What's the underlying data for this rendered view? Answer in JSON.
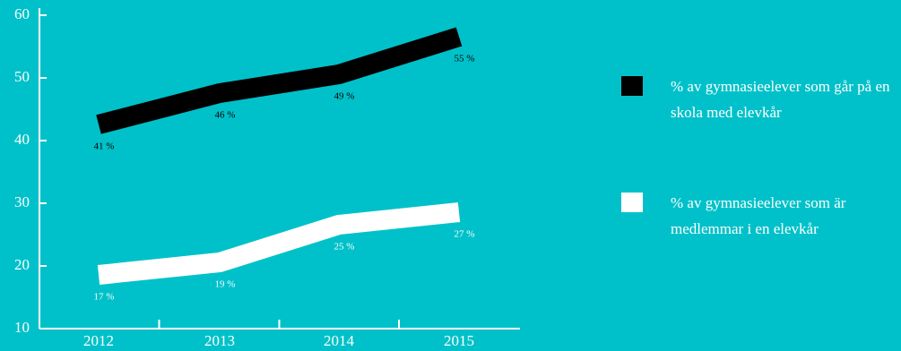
{
  "chart_data": {
    "type": "line",
    "categories": [
      "2012",
      "2013",
      "2014",
      "2015"
    ],
    "series": [
      {
        "name": "% av gymnasieelever som går på en skola med elevkår",
        "color": "#000000",
        "values": [
          41,
          46,
          49,
          55
        ],
        "value_labels": [
          "41 %",
          "46 %",
          "49 %",
          "55 %"
        ]
      },
      {
        "name": "% av gymnasieelever som är medlemmar i en elevkår",
        "color": "#ffffff",
        "values": [
          17,
          19,
          25,
          27
        ],
        "value_labels": [
          "17 %",
          "19 %",
          "25 %",
          "27 %"
        ]
      }
    ],
    "ylim": [
      10,
      60
    ],
    "yticks": [
      10,
      20,
      30,
      40,
      50,
      60
    ]
  }
}
